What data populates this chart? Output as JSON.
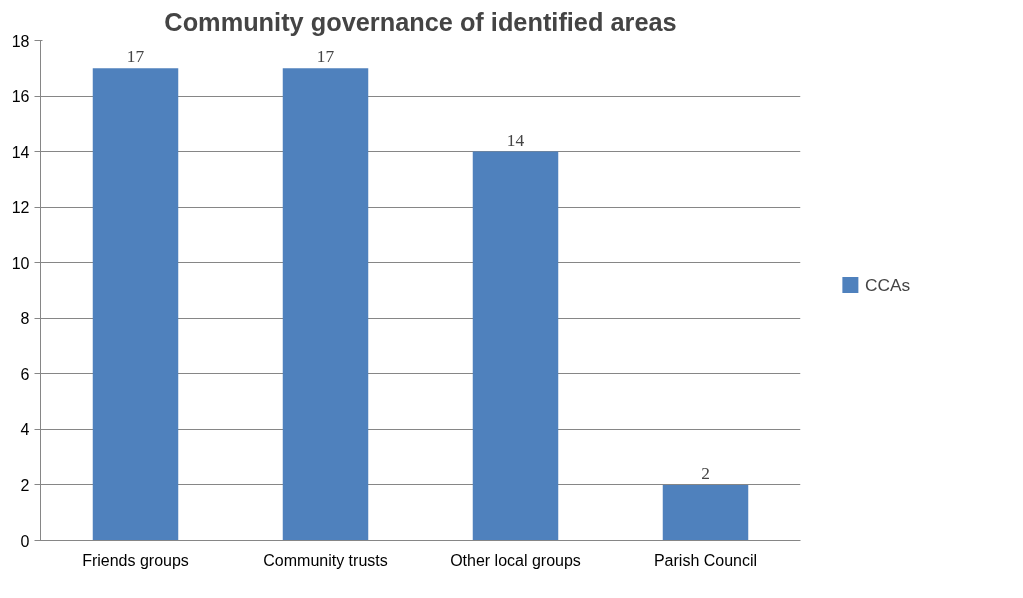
{
  "chart_data": {
    "type": "bar",
    "title": "Community governance of identified areas",
    "categories": [
      "Friends groups",
      "Community trusts",
      "Other local groups",
      "Parish Council"
    ],
    "series": [
      {
        "name": "CCAs",
        "color": "#4f81bd",
        "values": [
          17,
          17,
          14,
          2
        ]
      }
    ],
    "ylim": [
      0,
      18
    ],
    "yticks": [
      0,
      2,
      4,
      6,
      8,
      10,
      12,
      14,
      16,
      18
    ],
    "grid": "y",
    "legend": "right",
    "data_labels": true
  }
}
